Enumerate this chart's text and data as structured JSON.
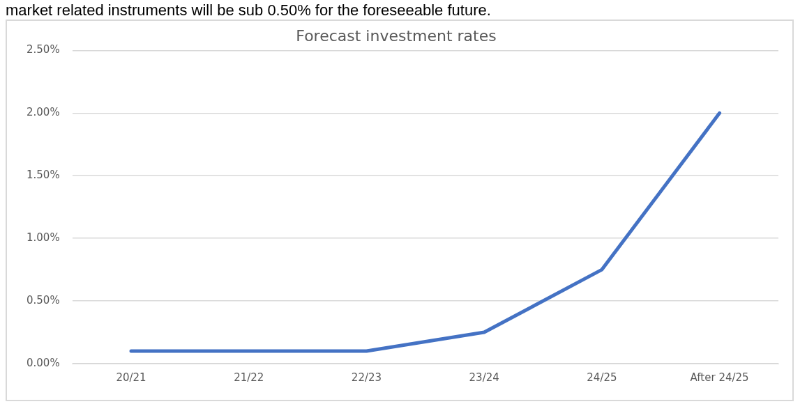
{
  "chart_data": {
    "type": "line",
    "title": "Forecast investment rates",
    "annotations": [
      "market related instruments will be sub 0.50% for the foreseeable future."
    ],
    "categories": [
      "20/21",
      "21/22",
      "22/23",
      "23/24",
      "24/25",
      "After 24/25"
    ],
    "series": [
      {
        "color": "#4472c4",
        "values": [
          0.1,
          0.1,
          0.1,
          0.25,
          0.75,
          2.0
        ]
      }
    ],
    "ylim": [
      0,
      2.5
    ],
    "yticks": [
      {
        "value": 0,
        "label": "0.00%"
      },
      {
        "value": 0.5,
        "label": "0.50%"
      },
      {
        "value": 1,
        "label": "1.00%"
      },
      {
        "value": 1.5,
        "label": "1.50%"
      },
      {
        "value": 2,
        "label": "2.00%"
      },
      {
        "value": 2.5,
        "label": "2.50%"
      }
    ],
    "grid": "y",
    "legend": false,
    "marker": "none",
    "line_style": "solid"
  }
}
